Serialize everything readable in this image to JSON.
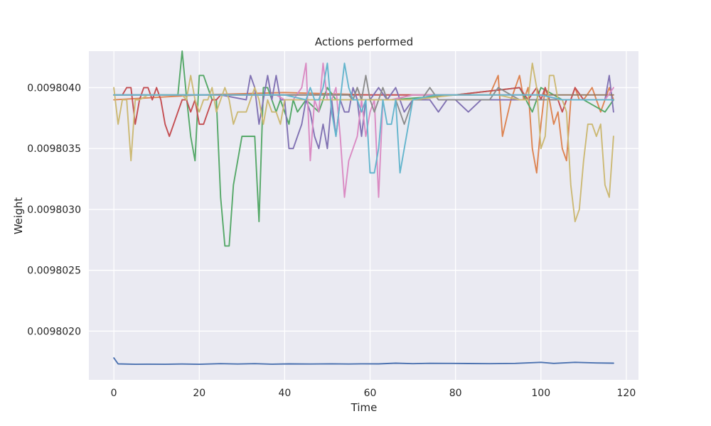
{
  "chart_data": {
    "type": "line",
    "title": "Actions performed",
    "xlabel": "Time",
    "ylabel": "Weight",
    "xlim": [
      -5.85,
      122.85
    ],
    "ylim": [
      0.0098016,
      0.0098043
    ],
    "xticks": [
      0,
      20,
      40,
      60,
      80,
      100,
      120
    ],
    "yticks": [
      0.009802,
      0.0098025,
      0.009803,
      0.0098035,
      0.009804
    ],
    "ytick_labels": [
      "0.0098020",
      "0.0098025",
      "0.0098030",
      "0.0098035",
      "0.0098040"
    ],
    "grid": true,
    "background": "#eaeaf2",
    "series": [
      {
        "color": "#4c72b0",
        "x": [
          0,
          1,
          5,
          8,
          12,
          16,
          20,
          25,
          29,
          33,
          37,
          41,
          46,
          51,
          55,
          58,
          62,
          66,
          70,
          74,
          78,
          83,
          88,
          94,
          100,
          103,
          108,
          113,
          117
        ],
        "y": [
          0.00980178,
          0.009801731,
          0.009801728,
          0.009801729,
          0.009801728,
          0.00980173,
          0.009801728,
          0.009801733,
          0.00980173,
          0.009801733,
          0.009801729,
          0.009801731,
          0.00980173,
          0.009801732,
          0.00980173,
          0.009801732,
          0.009801731,
          0.009801737,
          0.009801733,
          0.009801736,
          0.009801735,
          0.009801734,
          0.009801733,
          0.009801735,
          0.009801744,
          0.009801735,
          0.009801744,
          0.009801739,
          0.009801737
        ]
      },
      {
        "color": "#dd8452",
        "x": [
          0,
          20,
          40,
          60,
          80,
          88,
          90,
          91,
          93,
          95,
          96,
          97,
          98,
          99,
          100,
          101,
          102,
          103,
          104,
          105,
          106,
          107,
          108,
          109,
          110,
          112,
          114,
          116,
          117
        ],
        "y": [
          0.0098039,
          0.00980394,
          0.00980396,
          0.00980394,
          0.00980394,
          0.00980394,
          0.0098041,
          0.0098036,
          0.0098039,
          0.0098041,
          0.0098039,
          0.009804,
          0.0098035,
          0.0098033,
          0.0098037,
          0.009804,
          0.0098039,
          0.0098037,
          0.0098038,
          0.0098035,
          0.0098034,
          0.0098039,
          0.009804,
          0.0098039,
          0.0098039,
          0.009804,
          0.0098038,
          0.009804,
          0.0098039
        ]
      },
      {
        "color": "#55a868",
        "x": [
          0,
          10,
          15,
          16,
          17,
          18,
          19,
          20,
          21,
          22,
          23,
          24,
          25,
          26,
          27,
          28,
          30,
          31,
          32,
          33,
          34,
          35,
          36,
          37,
          38,
          39,
          40,
          41,
          42,
          43,
          45,
          48,
          50,
          52,
          55,
          60,
          65,
          80,
          95,
          98,
          100,
          105,
          110,
          115,
          117
        ],
        "y": [
          0.00980394,
          0.00980394,
          0.00980394,
          0.0098043,
          0.00980393,
          0.0098036,
          0.0098034,
          0.0098041,
          0.0098041,
          0.009804,
          0.0098039,
          0.0098039,
          0.0098031,
          0.0098027,
          0.0098027,
          0.0098032,
          0.0098036,
          0.0098036,
          0.0098036,
          0.0098036,
          0.0098029,
          0.009804,
          0.009804,
          0.0098039,
          0.0098038,
          0.0098039,
          0.0098038,
          0.0098037,
          0.0098039,
          0.0098038,
          0.0098039,
          0.0098038,
          0.009804,
          0.0098039,
          0.0098039,
          0.0098039,
          0.0098039,
          0.00980394,
          0.009804,
          0.0098038,
          0.009804,
          0.0098039,
          0.0098039,
          0.0098038,
          0.0098039
        ]
      },
      {
        "color": "#c44e52",
        "x": [
          0,
          2,
          3,
          4,
          5,
          6,
          7,
          8,
          9,
          10,
          11,
          12,
          13,
          14,
          15,
          16,
          17,
          18,
          19,
          20,
          21,
          22,
          23,
          24,
          25,
          30,
          40,
          60,
          80,
          95,
          97,
          99,
          100,
          101,
          102,
          103,
          104,
          105,
          106,
          107,
          108,
          110,
          112,
          114,
          116,
          117
        ],
        "y": [
          0.00980394,
          0.00980394,
          0.009804,
          0.009804,
          0.0098037,
          0.0098039,
          0.009804,
          0.009804,
          0.0098039,
          0.009804,
          0.0098039,
          0.0098037,
          0.0098036,
          0.0098037,
          0.0098038,
          0.0098039,
          0.0098039,
          0.0098038,
          0.0098039,
          0.0098037,
          0.0098037,
          0.0098038,
          0.0098039,
          0.0098039,
          0.00980394,
          0.00980394,
          0.00980394,
          0.00980394,
          0.00980394,
          0.009804,
          0.0098039,
          0.009804,
          0.0098039,
          0.009804,
          0.0098039,
          0.0098039,
          0.0098039,
          0.0098038,
          0.0098039,
          0.0098039,
          0.009804,
          0.0098039,
          0.0098039,
          0.0098039,
          0.0098039,
          0.0098039
        ]
      },
      {
        "color": "#8172b3",
        "x": [
          0,
          25,
          31,
          32,
          33,
          34,
          35,
          36,
          37,
          38,
          39,
          40,
          41,
          42,
          43,
          44,
          45,
          46,
          47,
          48,
          49,
          50,
          51,
          52,
          53,
          54,
          55,
          56,
          57,
          58,
          59,
          60,
          62,
          64,
          66,
          68,
          70,
          72,
          74,
          76,
          78,
          80,
          83,
          86,
          90,
          100,
          105,
          110,
          114,
          115,
          116,
          117
        ],
        "y": [
          0.00980394,
          0.00980394,
          0.0098039,
          0.0098041,
          0.009804,
          0.0098037,
          0.0098039,
          0.0098041,
          0.0098039,
          0.0098041,
          0.0098039,
          0.0098039,
          0.0098035,
          0.0098035,
          0.0098036,
          0.0098037,
          0.0098039,
          0.0098038,
          0.0098036,
          0.0098035,
          0.0098037,
          0.0098035,
          0.0098039,
          0.0098036,
          0.0098039,
          0.0098038,
          0.0098038,
          0.009804,
          0.0098039,
          0.0098036,
          0.0098039,
          0.0098039,
          0.009804,
          0.0098039,
          0.009804,
          0.0098038,
          0.0098039,
          0.0098039,
          0.0098039,
          0.0098038,
          0.0098039,
          0.0098039,
          0.0098038,
          0.0098039,
          0.0098039,
          0.0098039,
          0.0098039,
          0.0098039,
          0.0098039,
          0.0098039,
          0.0098041,
          0.0098038
        ]
      },
      {
        "color": "#937860",
        "x": [
          0,
          20,
          40,
          55,
          56,
          57,
          58,
          60,
          62,
          63,
          65,
          70,
          75,
          80,
          90,
          100,
          110,
          117
        ],
        "y": [
          0.00980394,
          0.00980394,
          0.00980394,
          0.00980394,
          0.0098039,
          0.009804,
          0.0098039,
          0.0098039,
          0.0098039,
          0.0098039,
          0.0098039,
          0.00980394,
          0.00980394,
          0.00980394,
          0.00980394,
          0.00980394,
          0.00980394,
          0.00980394
        ]
      },
      {
        "color": "#da8bc3",
        "x": [
          0,
          20,
          38,
          40,
          42,
          44,
          45,
          46,
          47,
          48,
          49,
          50,
          51,
          52,
          53,
          54,
          55,
          56,
          57,
          58,
          59,
          60,
          61,
          62,
          63,
          64,
          65,
          70,
          80,
          90,
          100,
          105,
          110,
          115,
          117
        ],
        "y": [
          0.00980394,
          0.00980394,
          0.00980394,
          0.0098039,
          0.0098039,
          0.009804,
          0.0098042,
          0.0098034,
          0.0098039,
          0.0098038,
          0.0098042,
          0.0098039,
          0.0098039,
          0.009804,
          0.0098036,
          0.0098031,
          0.0098034,
          0.0098035,
          0.0098036,
          0.0098039,
          0.0098036,
          0.0098038,
          0.0098039,
          0.0098031,
          0.0098039,
          0.0098039,
          0.0098039,
          0.00980394,
          0.00980394,
          0.00980394,
          0.00980394,
          0.0098039,
          0.0098039,
          0.0098039,
          0.009804
        ]
      },
      {
        "color": "#8c8c8c",
        "x": [
          0,
          20,
          30,
          40,
          50,
          55,
          56,
          57,
          58,
          59,
          60,
          61,
          62,
          63,
          64,
          65,
          66,
          67,
          68,
          69,
          70,
          72,
          74,
          76,
          78,
          80,
          82,
          84,
          86,
          88,
          90,
          95,
          100,
          105,
          110,
          117
        ],
        "y": [
          0.00980394,
          0.00980394,
          0.00980394,
          0.00980394,
          0.00980394,
          0.00980394,
          0.0098039,
          0.009804,
          0.0098039,
          0.0098041,
          0.0098039,
          0.0098038,
          0.0098039,
          0.009804,
          0.0098039,
          0.0098039,
          0.0098039,
          0.0098038,
          0.0098037,
          0.0098038,
          0.0098039,
          0.0098039,
          0.009804,
          0.0098039,
          0.0098039,
          0.0098039,
          0.0098039,
          0.0098039,
          0.0098039,
          0.0098039,
          0.009804,
          0.0098039,
          0.0098039,
          0.0098039,
          0.0098039,
          0.0098039
        ]
      },
      {
        "color": "#ccb974",
        "x": [
          0,
          1,
          2,
          3,
          4,
          5,
          6,
          8,
          10,
          14,
          16,
          17,
          18,
          19,
          20,
          21,
          22,
          23,
          24,
          25,
          26,
          27,
          28,
          29,
          30,
          31,
          32,
          33,
          34,
          35,
          36,
          37,
          38,
          39,
          40,
          45,
          50,
          55,
          60,
          62,
          64,
          66,
          68,
          70,
          80,
          90,
          95,
          97,
          98,
          99,
          100,
          101,
          102,
          103,
          104,
          105,
          106,
          107,
          108,
          109,
          110,
          111,
          112,
          113,
          114,
          115,
          116,
          117
        ],
        "y": [
          0.009804,
          0.0098037,
          0.0098039,
          0.0098039,
          0.0098034,
          0.0098039,
          0.0098039,
          0.00980394,
          0.00980394,
          0.00980394,
          0.00980394,
          0.0098039,
          0.0098041,
          0.0098039,
          0.0098038,
          0.0098039,
          0.0098039,
          0.009804,
          0.0098038,
          0.0098039,
          0.009804,
          0.0098039,
          0.0098037,
          0.0098038,
          0.0098038,
          0.0098038,
          0.0098039,
          0.009804,
          0.0098039,
          0.0098037,
          0.0098039,
          0.0098038,
          0.0098038,
          0.0098037,
          0.0098039,
          0.0098039,
          0.0098039,
          0.0098039,
          0.0098039,
          0.0098039,
          0.0098039,
          0.0098039,
          0.0098039,
          0.0098039,
          0.00980394,
          0.00980394,
          0.0098039,
          0.0098039,
          0.0098042,
          0.009804,
          0.0098035,
          0.0098036,
          0.0098041,
          0.0098041,
          0.0098039,
          0.0098039,
          0.0098038,
          0.0098032,
          0.0098029,
          0.009803,
          0.0098034,
          0.0098037,
          0.0098037,
          0.0098036,
          0.0098037,
          0.0098032,
          0.0098031,
          0.0098036
        ]
      },
      {
        "color": "#64b5cd",
        "x": [
          0,
          20,
          40,
          45,
          46,
          47,
          48,
          49,
          50,
          51,
          52,
          53,
          54,
          55,
          56,
          57,
          58,
          59,
          60,
          61,
          62,
          63,
          64,
          65,
          66,
          67,
          68,
          70,
          75,
          80,
          90,
          100,
          105,
          110,
          117
        ],
        "y": [
          0.00980394,
          0.00980394,
          0.00980394,
          0.0098039,
          0.009804,
          0.0098039,
          0.0098039,
          0.009804,
          0.0098042,
          0.0098038,
          0.0098036,
          0.0098039,
          0.0098042,
          0.009804,
          0.0098039,
          0.0098039,
          0.0098038,
          0.0098039,
          0.0098033,
          0.0098033,
          0.0098035,
          0.0098039,
          0.0098037,
          0.0098037,
          0.0098039,
          0.0098033,
          0.0098035,
          0.0098039,
          0.00980394,
          0.00980394,
          0.00980394,
          0.00980394,
          0.0098039,
          0.0098039,
          0.0098039
        ]
      }
    ]
  }
}
